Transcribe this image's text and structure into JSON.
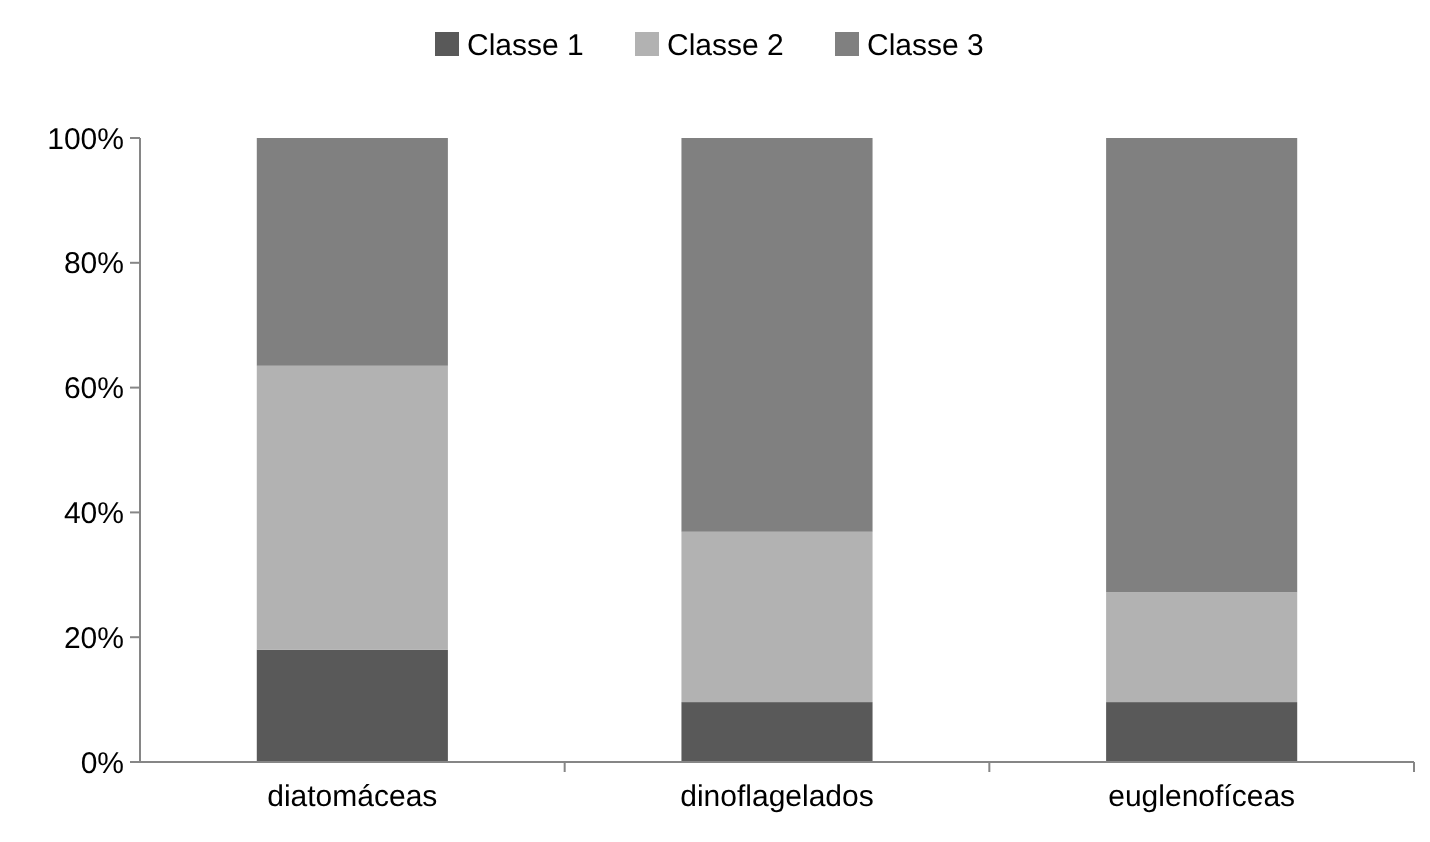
{
  "chart_data": {
    "type": "bar",
    "stacked": true,
    "categories": [
      "diatomáceas",
      "dinoflagelados",
      "euglenofíceas"
    ],
    "series": [
      {
        "name": "Classe 1",
        "color": "#595959",
        "values": [
          18,
          9.6,
          9.6
        ]
      },
      {
        "name": "Classe 2",
        "color": "#b2b2b2",
        "values": [
          45.5,
          27.3,
          17.6
        ]
      },
      {
        "name": "Classe 3",
        "color": "#808080",
        "values": [
          36.5,
          63.1,
          72.8
        ]
      }
    ],
    "ylim": [
      0,
      100
    ],
    "yticks": [
      {
        "value": 0,
        "label": "0%"
      },
      {
        "value": 20,
        "label": "20%"
      },
      {
        "value": 40,
        "label": "40%"
      },
      {
        "value": 60,
        "label": "60%"
      },
      {
        "value": 80,
        "label": "80%"
      },
      {
        "value": 100,
        "label": "100%"
      }
    ],
    "grid": false,
    "legend": "top"
  }
}
